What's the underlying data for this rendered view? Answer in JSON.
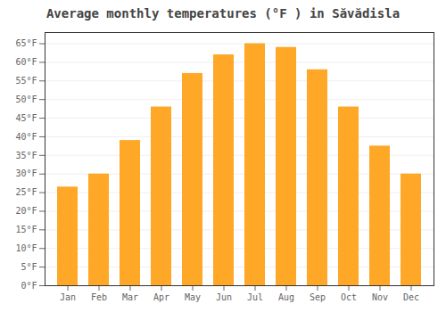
{
  "chart_data": {
    "type": "bar",
    "title": "Average monthly temperatures (°F ) in Săvădisla",
    "categories": [
      "Jan",
      "Feb",
      "Mar",
      "Apr",
      "May",
      "Jun",
      "Jul",
      "Aug",
      "Sep",
      "Oct",
      "Nov",
      "Dec"
    ],
    "values": [
      26.5,
      30.0,
      39.0,
      48.0,
      57.0,
      62.0,
      65.0,
      64.0,
      58.0,
      48.0,
      37.5,
      30.0
    ],
    "color": "#FFA726",
    "ylim": [
      0,
      68
    ],
    "yticks": [
      {
        "value": 0,
        "label": "0°F"
      },
      {
        "value": 5,
        "label": "5°F"
      },
      {
        "value": 10,
        "label": "10°F"
      },
      {
        "value": 15,
        "label": "15°F"
      },
      {
        "value": 20,
        "label": "20°F"
      },
      {
        "value": 25,
        "label": "25°F"
      },
      {
        "value": 30,
        "label": "30°F"
      },
      {
        "value": 35,
        "label": "35°F"
      },
      {
        "value": 40,
        "label": "40°F"
      },
      {
        "value": 45,
        "label": "45°F"
      },
      {
        "value": 50,
        "label": "50°F"
      },
      {
        "value": 55,
        "label": "55°F"
      },
      {
        "value": 60,
        "label": "60°F"
      },
      {
        "value": 65,
        "label": "65°F"
      }
    ],
    "grid": true
  }
}
